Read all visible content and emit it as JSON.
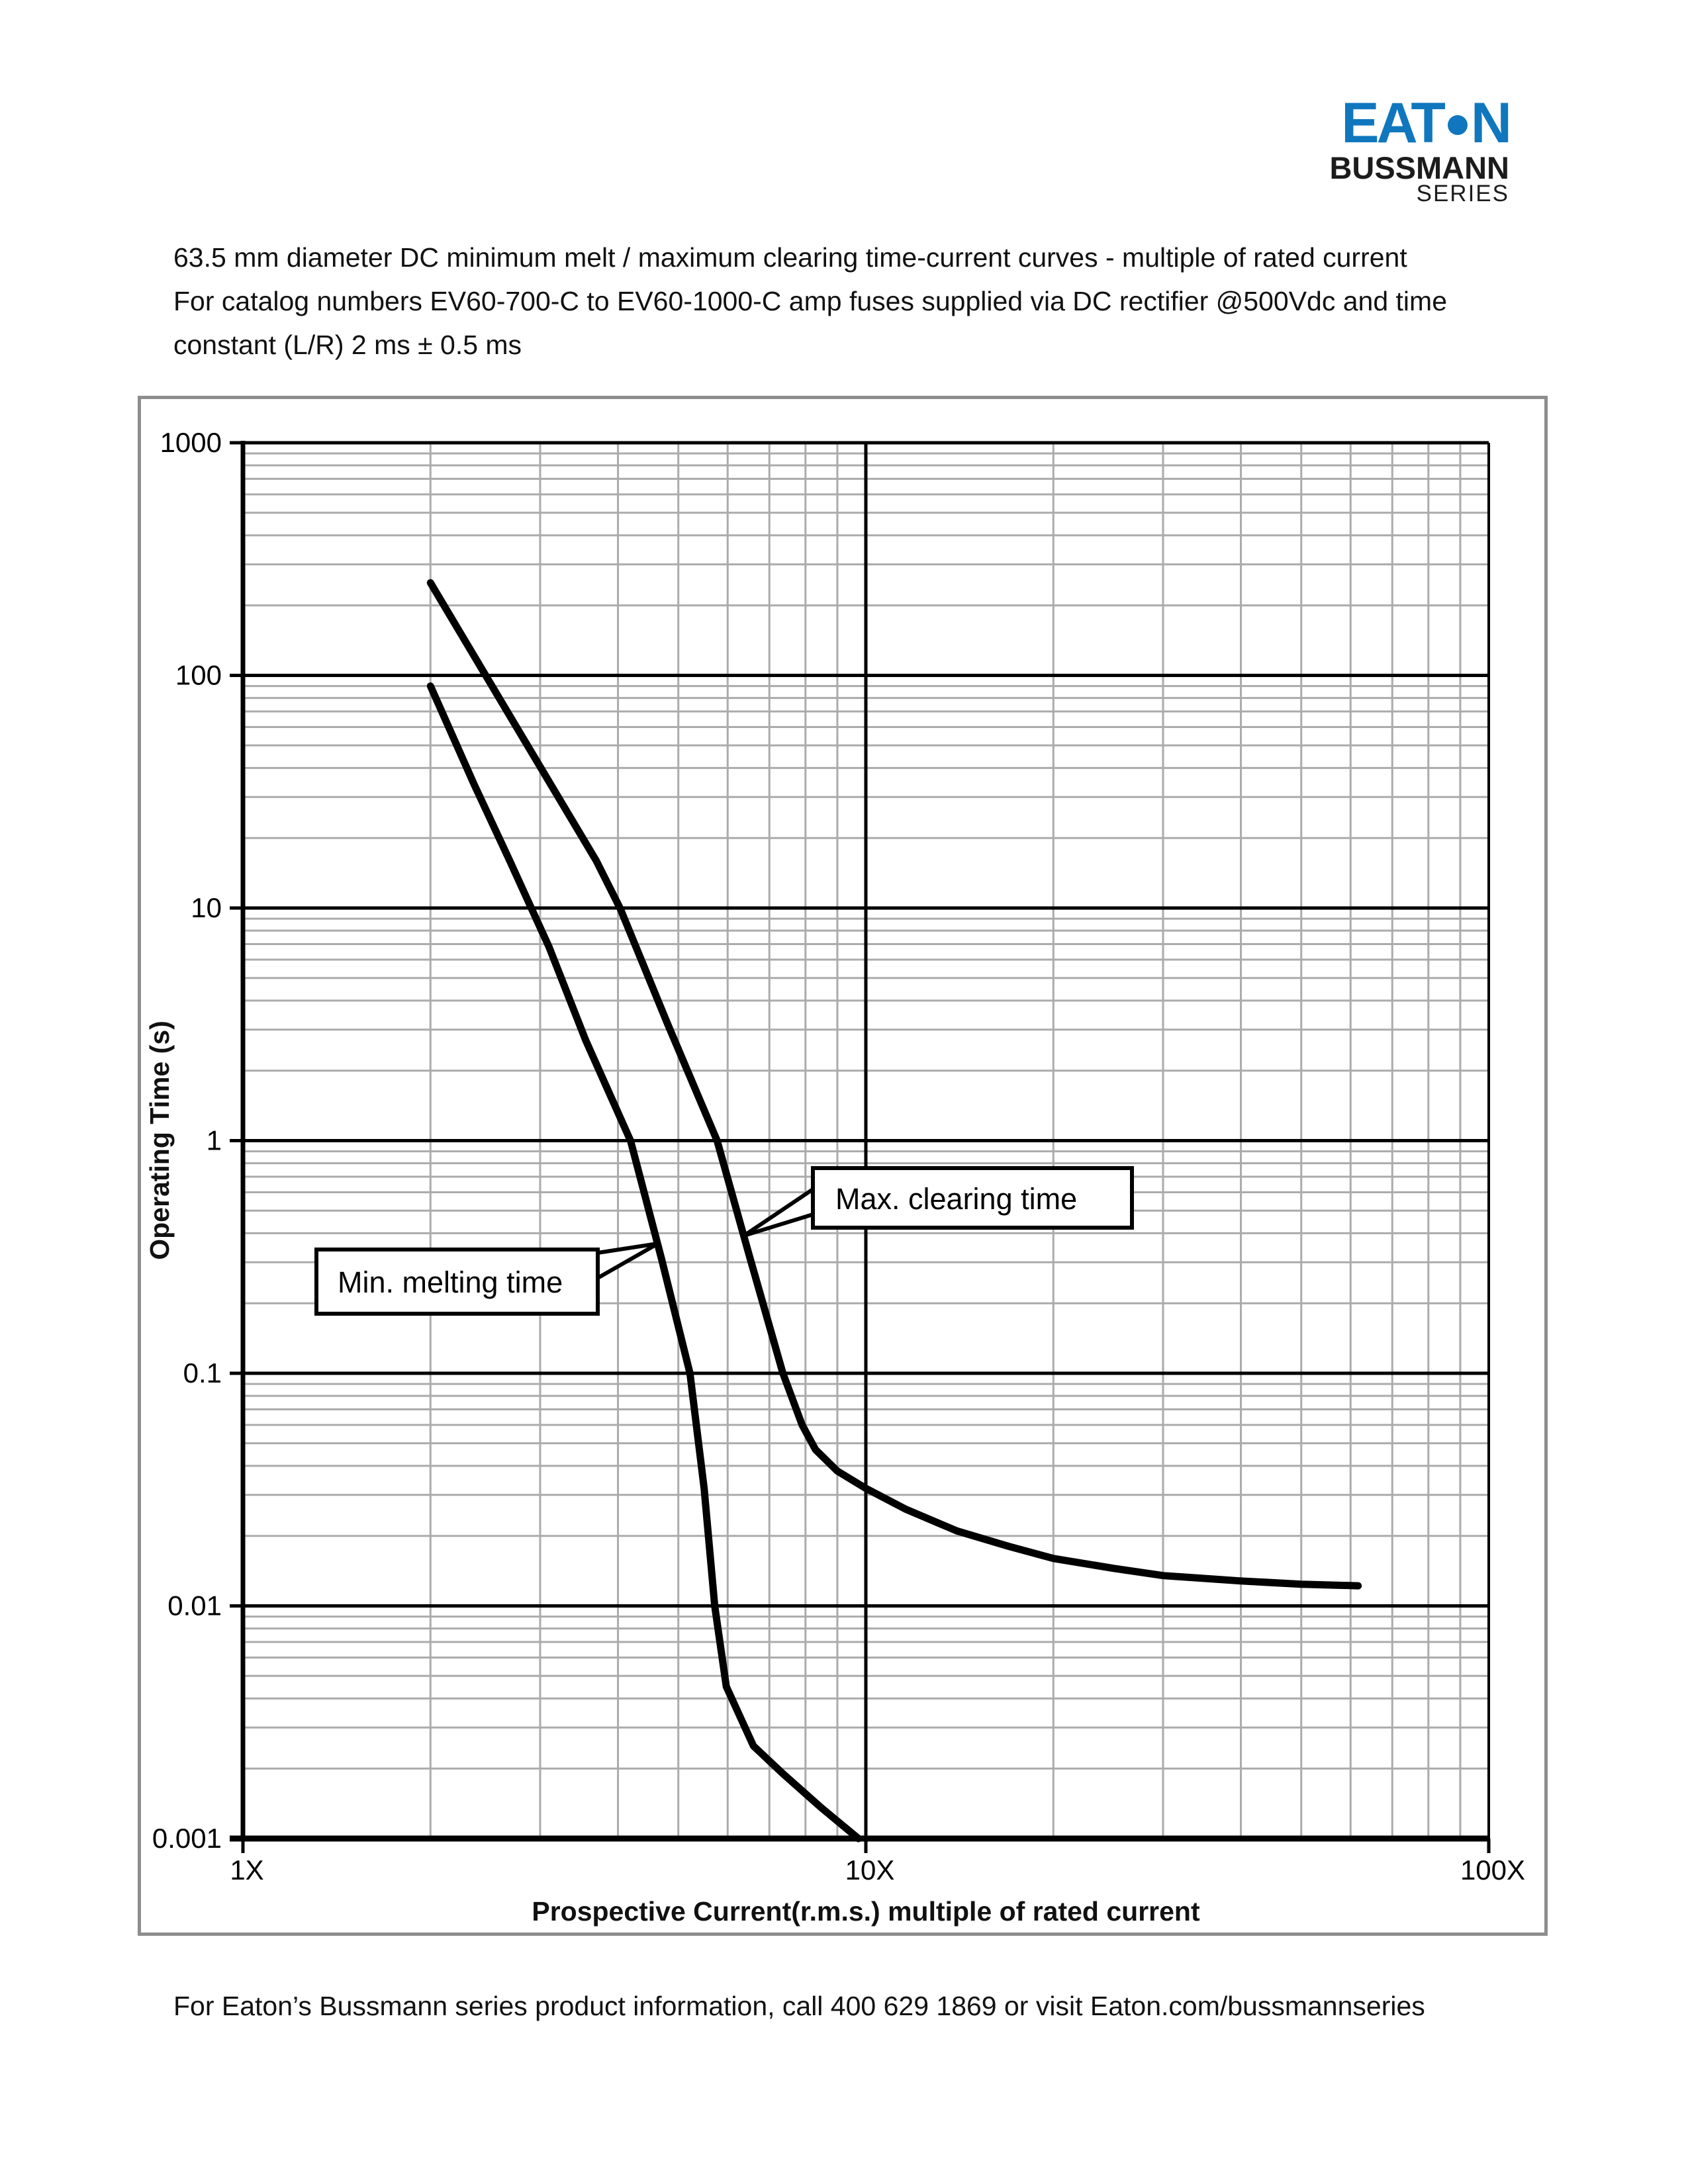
{
  "document": {
    "title_lines": [
      "63.5 mm diameter DC minimum melt / maximum clearing time-current curves - multiple of rated current",
      "For catalog numbers EV60-700-C to EV60-1000-C amp fuses supplied via DC rectifier @500Vdc and time",
      "constant (L/R) 2 ms ± 0.5 ms"
    ],
    "footer": "For Eaton’s Bussmann series product information, call 400 629 1869 or visit Eaton.com/bussmannseries"
  },
  "logo": {
    "word": "EATON",
    "subtitle": "BUSSMANN",
    "subtitle2": "SERIES",
    "blue": "#1077BE"
  },
  "chart_data": {
    "type": "line",
    "title": "DC minimum melt / maximum clearing time-current curves",
    "xlabel": "Prospective Current(r.m.s.) multiple of rated current",
    "ylabel": "Operating Time (s)",
    "x_axis": {
      "scale": "log",
      "min": 1,
      "max": 100,
      "ticks": [
        {
          "value": 1,
          "label": "1X"
        },
        {
          "value": 10,
          "label": "10X"
        },
        {
          "value": 100,
          "label": "100X"
        }
      ]
    },
    "y_axis": {
      "scale": "log",
      "min": 0.001,
      "max": 1000,
      "ticks": [
        {
          "value": 1000,
          "label": "1000"
        },
        {
          "value": 100,
          "label": "100"
        },
        {
          "value": 10,
          "label": "10"
        },
        {
          "value": 1,
          "label": "1"
        },
        {
          "value": 0.1,
          "label": "0.1"
        },
        {
          "value": 0.01,
          "label": "0.01"
        },
        {
          "value": 0.001,
          "label": "0.001"
        }
      ]
    },
    "grid": {
      "on": true,
      "minor_color": "#ababab",
      "major_color": "#000000"
    },
    "legend_position": "annotated-callouts",
    "series": [
      {
        "name": "Min. melting time",
        "color": "#000000",
        "points": [
          [
            2.0,
            90
          ],
          [
            2.35,
            34
          ],
          [
            2.68,
            16
          ],
          [
            3.1,
            6.8
          ],
          [
            3.55,
            2.7
          ],
          [
            4.19,
            1.0
          ],
          [
            4.7,
            0.31
          ],
          [
            5.22,
            0.1
          ],
          [
            5.5,
            0.032
          ],
          [
            5.72,
            0.01
          ],
          [
            5.97,
            0.0045
          ],
          [
            6.6,
            0.0025
          ],
          [
            7.36,
            0.0019
          ],
          [
            8.5,
            0.00135
          ],
          [
            9.73,
            0.001
          ]
        ]
      },
      {
        "name": "Max. clearing time",
        "color": "#000000",
        "points": [
          [
            2.0,
            250
          ],
          [
            2.7,
            65
          ],
          [
            3.69,
            16
          ],
          [
            4.03,
            10
          ],
          [
            4.8,
            3.2
          ],
          [
            5.77,
            1.0
          ],
          [
            6.5,
            0.32
          ],
          [
            7.36,
            0.1
          ],
          [
            7.9,
            0.06
          ],
          [
            8.3,
            0.047
          ],
          [
            9.0,
            0.038
          ],
          [
            10,
            0.032
          ],
          [
            11.6,
            0.026
          ],
          [
            14,
            0.021
          ],
          [
            17,
            0.018
          ],
          [
            20,
            0.016
          ],
          [
            25,
            0.0145
          ],
          [
            30,
            0.0135
          ],
          [
            40,
            0.0128
          ],
          [
            50,
            0.0124
          ],
          [
            61.7,
            0.0122
          ]
        ]
      }
    ],
    "annotations": [
      {
        "label": "Min. melting time",
        "target_point": [
          4.64,
          0.36
        ]
      },
      {
        "label": "Max. clearing time",
        "target_point": [
          6.37,
          0.39
        ]
      }
    ]
  }
}
